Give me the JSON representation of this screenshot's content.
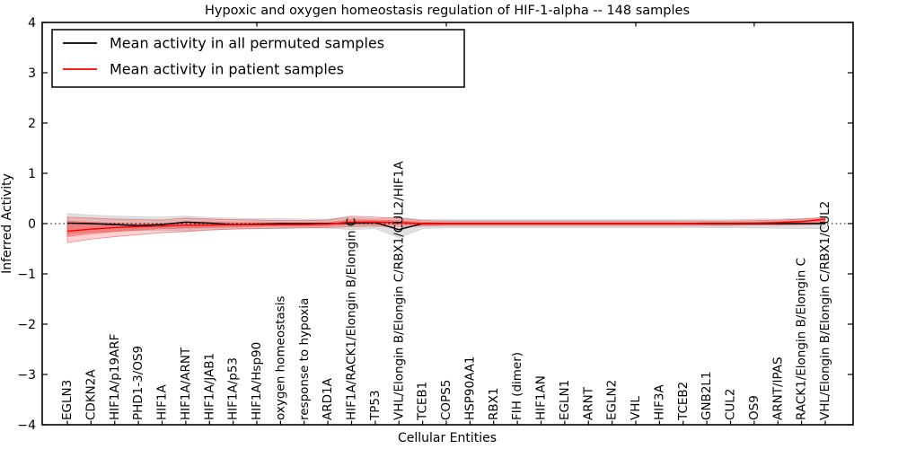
{
  "chart_data": {
    "type": "line",
    "title": "Hypoxic and oxygen homeostasis regulation of HIF-1-alpha -- 148 samples",
    "xlabel": "Cellular Entities",
    "ylabel": "Inferred Activity",
    "ylim": [
      -4,
      4
    ],
    "yticks": [
      -4,
      -3,
      -2,
      -1,
      0,
      1,
      2,
      3,
      4
    ],
    "grid": false,
    "legend_position": "upper left",
    "zero_line": {
      "style": "dotted",
      "color": "#000000",
      "y": 0
    },
    "top_tick_indices": [
      8,
      16,
      24,
      29
    ],
    "categories": [
      "EGLN3",
      "CDKN2A",
      "HIF1A/p19ARF",
      "PHD1-3/OS9",
      "HIF1A",
      "HIF1A/ARNT",
      "HIF1A/JAB1",
      "HIF1A/p53",
      "HIF1A/Hsp90",
      "oxygen homeostasis",
      "response to hypoxia",
      "ARD1A",
      "HIF1A/RACK1/Elongin B/Elongin C",
      "TP53",
      "VHL/Elongin B/Elongin C/RBX1/CUL2/HIF1A",
      "TCEB1",
      "COPS5",
      "HSP90AA1",
      "RBX1",
      "FIH (dimer)",
      "HIF1AN",
      "EGLN1",
      "ARNT",
      "EGLN2",
      "VHL",
      "HIF3A",
      "TCEB2",
      "GNB2L1",
      "CUL2",
      "OS9",
      "ARNT/IPAS",
      "RACK1/Elongin B/Elongin C",
      "VHL/Elongin B/Elongin C/RBX1/CUL2"
    ],
    "series": [
      {
        "name": "Mean activity in all permuted samples",
        "color": "#000000",
        "values": [
          0.01,
          0,
          -0.02,
          -0.04,
          -0.02,
          0.03,
          0.01,
          -0.02,
          -0.01,
          0,
          0,
          0,
          0.01,
          0.02,
          -0.12,
          0,
          0,
          0,
          0,
          0,
          0,
          0,
          0,
          0,
          0,
          0,
          0,
          0,
          0,
          0,
          0,
          0,
          0
        ]
      },
      {
        "name": "Mean activity in patient samples",
        "color": "#ff0000",
        "values": [
          -0.15,
          -0.11,
          -0.08,
          -0.06,
          -0.05,
          -0.03,
          -0.03,
          -0.02,
          -0.02,
          -0.02,
          -0.02,
          -0.01,
          0.03,
          0.03,
          0.02,
          0,
          0,
          0,
          0,
          0,
          0,
          0,
          0,
          0,
          0,
          0,
          0,
          0.01,
          0.01,
          0.01,
          0.02,
          0.04,
          0.09
        ]
      }
    ],
    "bands": [
      {
        "name": "permuted-samples-range",
        "color": "#999999",
        "edge": "#bbbbbb",
        "opacity": 0.3,
        "hi": [
          0.2,
          0.17,
          0.15,
          0.14,
          0.13,
          0.15,
          0.12,
          0.11,
          0.1,
          0.1,
          0.09,
          0.09,
          0.12,
          0.1,
          0.12,
          0.08,
          0.08,
          0.08,
          0.08,
          0.08,
          0.08,
          0.08,
          0.08,
          0.08,
          0.08,
          0.08,
          0.08,
          0.08,
          0.08,
          0.09,
          0.09,
          0.1,
          0.1
        ],
        "lo": [
          -0.2,
          -0.17,
          -0.15,
          -0.14,
          -0.13,
          -0.15,
          -0.12,
          -0.11,
          -0.1,
          -0.1,
          -0.09,
          -0.09,
          -0.12,
          -0.1,
          -0.28,
          -0.1,
          -0.08,
          -0.08,
          -0.08,
          -0.08,
          -0.08,
          -0.08,
          -0.08,
          -0.08,
          -0.08,
          -0.08,
          -0.08,
          -0.08,
          -0.08,
          -0.09,
          -0.09,
          -0.1,
          -0.1
        ]
      },
      {
        "name": "patient-samples-range-outer",
        "color": "#ff0000",
        "edge": "#dd4444",
        "opacity": 0.18,
        "hi": [
          0.13,
          0.11,
          0.09,
          0.08,
          0.07,
          0.11,
          0.09,
          0.08,
          0.07,
          0.06,
          0.06,
          0.07,
          0.15,
          0.13,
          0.11,
          0.06,
          0.05,
          0.05,
          0.05,
          0.05,
          0.05,
          0.05,
          0.05,
          0.05,
          0.05,
          0.05,
          0.05,
          0.05,
          0.05,
          0.06,
          0.07,
          0.09,
          0.13
        ],
        "lo": [
          -0.38,
          -0.31,
          -0.26,
          -0.22,
          -0.18,
          -0.16,
          -0.13,
          -0.11,
          -0.1,
          -0.09,
          -0.08,
          -0.08,
          -0.06,
          -0.05,
          -0.06,
          -0.05,
          -0.04,
          -0.04,
          -0.04,
          -0.04,
          -0.04,
          -0.04,
          -0.04,
          -0.04,
          -0.04,
          -0.04,
          -0.04,
          -0.04,
          -0.04,
          -0.03,
          -0.03,
          -0.02,
          -0.01
        ]
      },
      {
        "name": "patient-samples-range-inner",
        "color": "#ff0000",
        "edge": "#ee6666",
        "opacity": 0.3,
        "hi": [
          0.05,
          0.03,
          0.01,
          0,
          0,
          0.04,
          0.03,
          0.02,
          0.02,
          0.02,
          0.02,
          0.02,
          0.08,
          0.07,
          0.06,
          0.03,
          0.02,
          0.02,
          0.02,
          0.02,
          0.02,
          0.02,
          0.02,
          0.02,
          0.02,
          0.02,
          0.02,
          0.02,
          0.02,
          0.03,
          0.04,
          0.06,
          0.1
        ],
        "lo": [
          -0.26,
          -0.2,
          -0.16,
          -0.13,
          -0.1,
          -0.09,
          -0.08,
          -0.07,
          -0.06,
          -0.05,
          -0.05,
          -0.05,
          -0.02,
          -0.02,
          -0.02,
          -0.03,
          -0.02,
          -0.02,
          -0.02,
          -0.02,
          -0.02,
          -0.02,
          -0.02,
          -0.02,
          -0.02,
          -0.02,
          -0.02,
          -0.02,
          -0.02,
          -0.01,
          0,
          0,
          0.02
        ]
      }
    ]
  }
}
